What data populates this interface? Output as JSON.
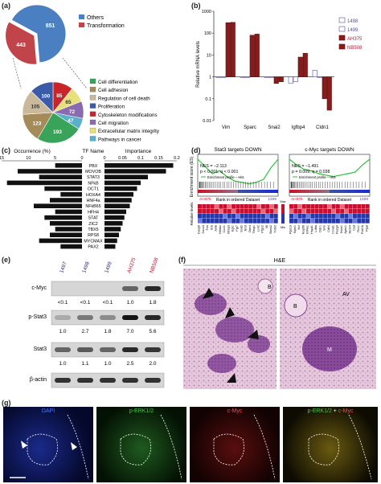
{
  "panel_labels": {
    "a": "(a)",
    "b": "(b)",
    "c": "(c)",
    "d": "(d)",
    "e": "(e)",
    "f": "(f)",
    "g": "(g)"
  },
  "colors": {
    "others": "#4a7fc1",
    "transformation": "#c0444a",
    "dark_red": "#8b1a1a",
    "purple": "#5a4aa8",
    "hm_red": "#c8102e",
    "hm_blue": "#2438a8"
  },
  "panel_a": {
    "chart_data": {
      "type": "pie",
      "top_pie": {
        "categories": [
          "Others",
          "Transformation"
        ],
        "values": [
          851,
          443
        ]
      },
      "bottom_pie": {
        "categories": [
          "Cell differentiation",
          "Cell adhesion",
          "Regulation of cell death",
          "Proliferation",
          "Cytoskeleton modifications",
          "Cell migration",
          "Extracellular matrix integrity",
          "Pathways in cancer"
        ],
        "values": [
          193,
          123,
          105,
          100,
          85,
          72,
          65,
          47
        ],
        "colors": [
          "#3aa35a",
          "#a68b5a",
          "#c9b99a",
          "#3a5ba8",
          "#c8242a",
          "#8a6ab0",
          "#e8e07a",
          "#5ab0c8"
        ]
      }
    },
    "legend_top": [
      "Others",
      "Transformation"
    ]
  },
  "panel_b": {
    "chart_data": {
      "type": "bar",
      "ylabel": "Relative mRNA levels",
      "yscale": "log",
      "yticks": [
        "1000",
        "100",
        "10",
        "1",
        "0.1",
        "0.01"
      ],
      "categories": [
        "Vim",
        "Sparc",
        "Snai2",
        "Igfbp4",
        "Cldn1"
      ],
      "series": [
        {
          "name": "1498",
          "values": [
            1,
            1,
            1,
            0.5,
            2
          ]
        },
        {
          "name": "1499",
          "values": [
            1,
            1,
            1,
            0.6,
            1
          ]
        },
        {
          "name": "AH375",
          "values": [
            300,
            80,
            0.5,
            8,
            0.1
          ]
        },
        {
          "name": "NB508",
          "values": [
            310,
            90,
            0.6,
            12,
            0.03
          ]
        }
      ]
    },
    "legend": [
      "1498",
      "1499",
      "AH375",
      "NB508"
    ]
  },
  "panel_c": {
    "chart_data": {
      "type": "bar",
      "headers": [
        "Occurrence (%)",
        "TF Name",
        "Importance"
      ],
      "occ_ticks": [
        "15",
        "10",
        "5",
        "0"
      ],
      "imp_ticks": [
        "0",
        "0.05",
        "0.1",
        "0.15",
        "0.2"
      ],
      "tfs": [
        "PBX",
        "MOVOB",
        "STAT3",
        "NFkB",
        "OCT1",
        "HOXA4",
        "HNF4a",
        "NFkB65",
        "HFH4",
        "STAT",
        "ZIC2",
        "TBX5",
        "RPS8",
        "MYCMAX",
        "PAX2"
      ],
      "occurrence": [
        5,
        12,
        8,
        14,
        7,
        4,
        6,
        9,
        5,
        7,
        6,
        5,
        6,
        8,
        4
      ],
      "importance": [
        0.19,
        0.17,
        0.12,
        0.1,
        0.09,
        0.08,
        0.075,
        0.07,
        0.06,
        0.055,
        0.05,
        0.045,
        0.04,
        0.035,
        0.03
      ],
      "arrows": [
        "STAT3",
        "MYCMAX"
      ]
    }
  },
  "panel_d": {
    "left": {
      "title": "Stat3 targets DOWN",
      "nes": "NES = −2.113",
      "p": "p < 0.001; q < 0.001"
    },
    "right": {
      "title": "c-Myc targets DOWN",
      "nes": "NES = −1.491",
      "p": "p = 0.009; q = 0.038"
    },
    "ylabel": "Enrichment score (ES)",
    "legend_profile": "Enrichment profile – Hits",
    "rank_label": "Rank in ordered Dataset",
    "sample_left": "AH375",
    "sample_right": "1499",
    "levels_label": "Relative levels",
    "max": "Max",
    "min": "Min",
    "genes_left": [
      "Dusp6",
      "Socs3",
      "Fos",
      "Il1b",
      "Junb",
      "Nfkbiz",
      "Cxcl1",
      "Mmp3",
      "Egr1",
      "Fgf7",
      "Sod2",
      "Bcl3",
      "Osmr",
      "Timp1",
      "Lcn2",
      "Ptgs2",
      "Il6",
      "Sbno2",
      "Tnfrsf"
    ],
    "genes_right": [
      "Rps19",
      "Npm1",
      "Ncl",
      "Nop56",
      "Eif4a1",
      "Hspd1",
      "Ldha",
      "Odc1",
      "Srm",
      "Cdk4",
      "Ccnd1",
      "Pa2g4",
      "Nme1",
      "Apex1",
      "Mcm4",
      "Cad",
      "Rcc1",
      "Polr1b",
      "Ppat"
    ]
  },
  "panel_e": {
    "samples": [
      "1497",
      "1498",
      "1499",
      "AH375",
      "NB508"
    ],
    "rows": [
      {
        "label": "c-Myc",
        "values": [
          "<0.1",
          "<0.1",
          "<0.1",
          "1.0",
          "1.8"
        ]
      },
      {
        "label": "p-Stat3",
        "values": [
          "1.0",
          "2.7",
          "1.8",
          "7.0",
          "5.6"
        ]
      },
      {
        "label": "Stat3",
        "values": [
          "1.0",
          "1.1",
          "1.0",
          "2.5",
          "2.0"
        ]
      },
      {
        "label": "β-actin",
        "values": []
      }
    ]
  },
  "panel_f": {
    "title": "H&E",
    "labels": [
      "B",
      "B",
      "AV",
      "M"
    ]
  },
  "panel_g": {
    "titles": [
      "DAPI",
      "p-ERK1/2",
      "c-Myc",
      "p-ERK1/2 + c-Myc"
    ],
    "merge_a": "p-ERK1/2",
    "merge_plus": " + ",
    "merge_b": "c-Myc"
  }
}
